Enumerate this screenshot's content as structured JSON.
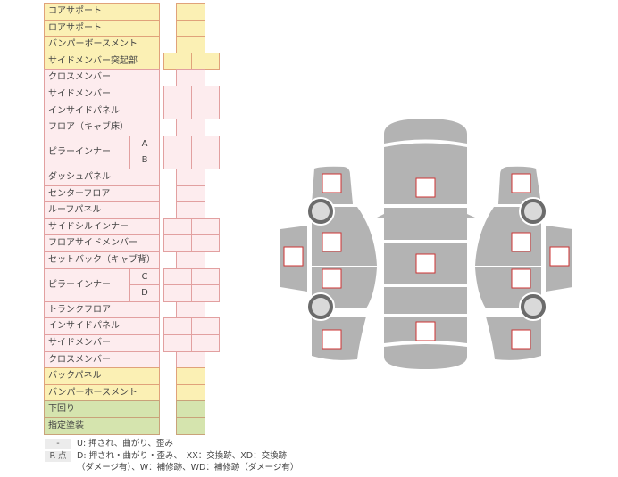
{
  "rows": [
    {
      "label": "コアサポート",
      "boxes": 1,
      "color": "yellow"
    },
    {
      "label": "ロアサポート",
      "boxes": 1,
      "color": "yellow"
    },
    {
      "label": "バンパーボースメント",
      "boxes": 1,
      "color": "yellow"
    },
    {
      "label": "サイドメンバー突起部",
      "boxes": 2,
      "color": "yellow"
    },
    {
      "label": "クロスメンバー",
      "boxes": 1,
      "color": "pink"
    },
    {
      "label": "サイドメンバー",
      "boxes": 2,
      "color": "pink"
    },
    {
      "label": "インサイドパネル",
      "boxes": 2,
      "color": "pink"
    },
    {
      "label": "フロア（キャブ床）",
      "boxes": 1,
      "color": "pink"
    },
    {
      "label": "ピラーインナー",
      "sub": "A",
      "boxes": 2,
      "color": "pink",
      "group_start": true
    },
    {
      "label": "",
      "sub": "B",
      "boxes": 2,
      "color": "pink",
      "group_cont": true
    },
    {
      "label": "ダッシュパネル",
      "boxes": 1,
      "color": "pink"
    },
    {
      "label": "センターフロア",
      "boxes": 1,
      "color": "pink"
    },
    {
      "label": "ルーフパネル",
      "boxes": 1,
      "color": "pink"
    },
    {
      "label": "サイドシルインナー",
      "boxes": 2,
      "color": "pink"
    },
    {
      "label": "フロアサイドメンバー",
      "boxes": 2,
      "color": "pink"
    },
    {
      "label": "セットバック（キャブ背）",
      "boxes": 1,
      "color": "pink"
    },
    {
      "label": "ピラーインナー",
      "sub": "C",
      "boxes": 2,
      "color": "pink",
      "group_start": true
    },
    {
      "label": "",
      "sub": "D",
      "boxes": 2,
      "color": "pink",
      "group_cont": true
    },
    {
      "label": "トランクフロア",
      "boxes": 1,
      "color": "pink"
    },
    {
      "label": "インサイドパネル",
      "boxes": 2,
      "color": "pink"
    },
    {
      "label": "サイドメンバー",
      "boxes": 2,
      "color": "pink"
    },
    {
      "label": "クロスメンバー",
      "boxes": 1,
      "color": "pink"
    },
    {
      "label": "バックパネル",
      "boxes": 1,
      "color": "yellow"
    },
    {
      "label": "バンパーホースメント",
      "boxes": 1,
      "color": "yellow"
    },
    {
      "label": "下回り",
      "boxes": 1,
      "color": "green"
    },
    {
      "label": "指定塗装",
      "boxes": 1,
      "color": "green"
    }
  ],
  "legend": {
    "key1": "-",
    "text1": "U: 押され、曲がり、歪み",
    "key2": "R 点",
    "text2a": "D: 押され・曲がり・歪み、　XX：交換跡、XD：交換跡",
    "text2b": "（ダメージ有）、W：補修跡、WD：補修跡（ダメージ有）"
  },
  "colors": {
    "body": "#b3b3b3",
    "wheel": "#6b6b6b",
    "hub": "#d9d9d9",
    "marker": "#cc3333"
  }
}
